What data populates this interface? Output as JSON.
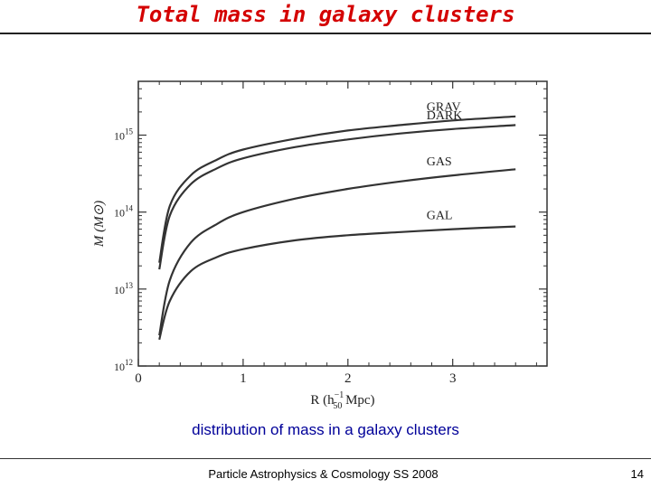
{
  "slide": {
    "title": "Total mass in galaxy clusters",
    "caption": "distribution of mass in a galaxy clusters",
    "footer": "Particle Astrophysics & Cosmology SS 2008",
    "page_number": "14",
    "title_color": "#d40000",
    "caption_color": "#000099"
  },
  "chart_data": {
    "type": "line",
    "title": "",
    "xlabel": "R (h50^-1 Mpc)",
    "xlabel_parts": {
      "base": "R (h",
      "sub": "50",
      "sup": "−1",
      "unit": " Mpc)"
    },
    "ylabel": "M (M⊙)",
    "xlim": [
      0,
      3.9
    ],
    "ylim": [
      1000000000000.0,
      5000000000000000.0
    ],
    "yscale": "log",
    "xticks": [
      0,
      1,
      2,
      3
    ],
    "yticks": [
      {
        "value": 1000000000000.0,
        "base": "10",
        "exp": "12"
      },
      {
        "value": 10000000000000.0,
        "base": "10",
        "exp": "13"
      },
      {
        "value": 100000000000000.0,
        "base": "10",
        "exp": "14"
      },
      {
        "value": 1000000000000000.0,
        "base": "10",
        "exp": "15"
      }
    ],
    "grid": false,
    "legend": "inline labels",
    "series": [
      {
        "name": "GRAV",
        "x": [
          0.2,
          0.3,
          0.5,
          0.75,
          1.0,
          1.5,
          2.0,
          2.5,
          3.0,
          3.6
        ],
        "y": [
          22000000000000.0,
          120000000000000.0,
          300000000000000.0,
          480000000000000.0,
          650000000000000.0,
          900000000000000.0,
          1150000000000000.0,
          1350000000000000.0,
          1550000000000000.0,
          1750000000000000.0
        ]
      },
      {
        "name": "DARK",
        "x": [
          0.2,
          0.3,
          0.5,
          0.75,
          1.0,
          1.5,
          2.0,
          2.5,
          3.0,
          3.6
        ],
        "y": [
          18000000000000.0,
          90000000000000.0,
          230000000000000.0,
          370000000000000.0,
          500000000000000.0,
          700000000000000.0,
          880000000000000.0,
          1050000000000000.0,
          1200000000000000.0,
          1350000000000000.0
        ]
      },
      {
        "name": "GAS",
        "x": [
          0.2,
          0.3,
          0.5,
          0.75,
          1.0,
          1.5,
          2.0,
          2.5,
          3.0,
          3.6
        ],
        "y": [
          2500000000000.0,
          13000000000000.0,
          40000000000000.0,
          70000000000000.0,
          100000000000000.0,
          150000000000000.0,
          200000000000000.0,
          250000000000000.0,
          300000000000000.0,
          360000000000000.0
        ]
      },
      {
        "name": "GAL",
        "x": [
          0.2,
          0.3,
          0.5,
          0.75,
          1.0,
          1.5,
          2.0,
          2.5,
          3.0,
          3.6
        ],
        "y": [
          2200000000000.0,
          7000000000000.0,
          17000000000000.0,
          26000000000000.0,
          33000000000000.0,
          43000000000000.0,
          50000000000000.0,
          55000000000000.0,
          60000000000000.0,
          65000000000000.0
        ]
      }
    ]
  }
}
